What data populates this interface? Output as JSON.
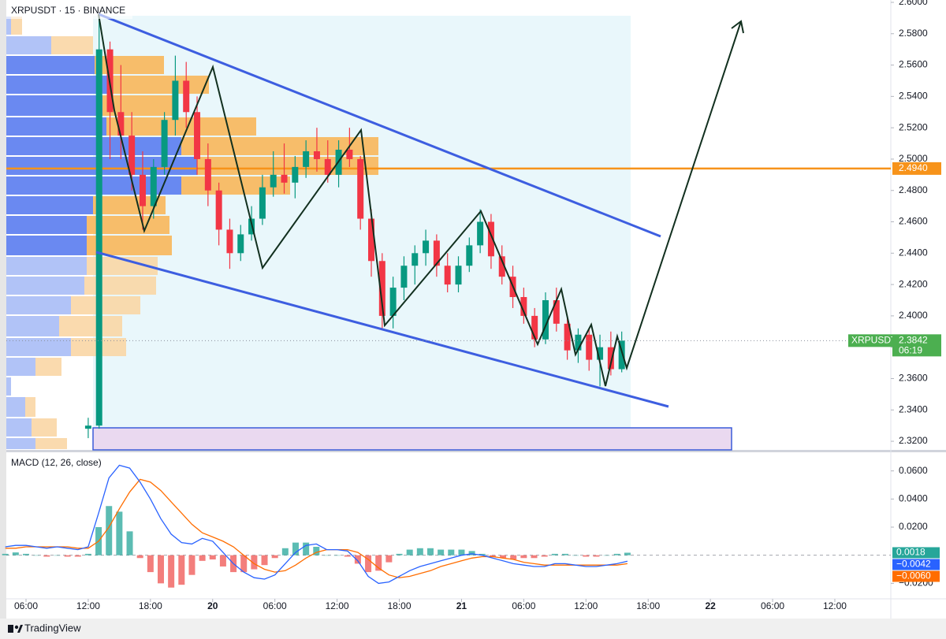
{
  "chart_data": [
    {
      "type": "candlestick",
      "title": "XRPUSDT · 15 · BINANCE",
      "x": [
        12,
        13.05,
        14.1,
        15.15,
        16.2,
        17.25,
        18.3,
        19.35,
        20.4,
        21.45,
        22.5,
        23.55,
        24.6,
        25.65,
        26.7,
        27.75,
        28.8,
        29.85,
        30.9,
        31.95,
        33,
        34.05,
        35.1,
        36.15,
        37.2,
        38.25,
        39.3,
        40.35,
        41.4,
        42.45,
        43.5,
        44.55,
        45.6,
        46.65,
        47.7,
        48.75,
        49.8,
        50.85,
        51.9,
        52.95,
        54,
        55.05,
        56.1,
        57.15,
        58.2,
        59.25,
        60.3,
        61.35,
        62.4,
        63.45
      ],
      "open": [
        2.328,
        2.33,
        2.57,
        2.53,
        2.515,
        2.49,
        2.47,
        2.495,
        2.525,
        2.55,
        2.53,
        2.5,
        2.48,
        2.455,
        2.44,
        2.452,
        2.462,
        2.482,
        2.49,
        2.485,
        2.495,
        2.505,
        2.5,
        2.49,
        2.506,
        2.5,
        2.462,
        2.435,
        2.4,
        2.418,
        2.432,
        2.44,
        2.448,
        2.432,
        2.42,
        2.432,
        2.445,
        2.46,
        2.438,
        2.425,
        2.412,
        2.4,
        2.385,
        2.41,
        2.395,
        2.378,
        2.388,
        2.372,
        2.38,
        2.366
      ],
      "high": [
        2.335,
        2.592,
        2.575,
        2.56,
        2.53,
        2.505,
        2.5,
        2.53,
        2.566,
        2.562,
        2.54,
        2.51,
        2.485,
        2.462,
        2.458,
        2.47,
        2.49,
        2.505,
        2.51,
        2.502,
        2.512,
        2.52,
        2.512,
        2.512,
        2.52,
        2.502,
        2.468,
        2.44,
        2.425,
        2.438,
        2.445,
        2.455,
        2.452,
        2.44,
        2.438,
        2.45,
        2.468,
        2.465,
        2.445,
        2.432,
        2.418,
        2.405,
        2.415,
        2.418,
        2.4,
        2.392,
        2.392,
        2.388,
        2.39,
        2.39
      ],
      "low": [
        2.322,
        2.328,
        2.5,
        2.5,
        2.48,
        2.455,
        2.462,
        2.49,
        2.515,
        2.52,
        2.49,
        2.47,
        2.445,
        2.43,
        2.435,
        2.448,
        2.458,
        2.476,
        2.478,
        2.475,
        2.488,
        2.492,
        2.485,
        2.482,
        2.495,
        2.455,
        2.425,
        2.392,
        2.392,
        2.41,
        2.42,
        2.432,
        2.425,
        2.415,
        2.415,
        2.428,
        2.44,
        2.43,
        2.42,
        2.405,
        2.395,
        2.38,
        2.382,
        2.39,
        2.372,
        2.37,
        2.365,
        2.355,
        2.362,
        2.364
      ],
      "close": [
        2.33,
        2.57,
        2.53,
        2.515,
        2.49,
        2.47,
        2.495,
        2.525,
        2.55,
        2.53,
        2.5,
        2.48,
        2.455,
        2.44,
        2.452,
        2.462,
        2.482,
        2.49,
        2.485,
        2.495,
        2.505,
        2.5,
        2.49,
        2.506,
        2.5,
        2.462,
        2.435,
        2.4,
        2.418,
        2.432,
        2.44,
        2.448,
        2.432,
        2.42,
        2.432,
        2.445,
        2.46,
        2.438,
        2.425,
        2.412,
        2.4,
        2.385,
        2.41,
        2.395,
        2.378,
        2.388,
        2.372,
        2.38,
        2.366,
        2.3842
      ],
      "up_color": "#089981",
      "down_color": "#f23645",
      "symbol_label": "XRPUSDT",
      "last_price_label": "2.3842",
      "countdown": "06:19",
      "last_color": "#4caf50",
      "hline": {
        "value": 2.494,
        "label": "2.4940",
        "color": "#f7931a"
      },
      "xlim": [
        4.1,
        89.4
      ],
      "ylim": [
        2.3145,
        2.6015
      ],
      "yticks": [
        {
          "value": 2.6,
          "label": "2.6000"
        },
        {
          "value": 2.58,
          "label": "2.5800"
        },
        {
          "value": 2.56,
          "label": "2.5600"
        },
        {
          "value": 2.54,
          "label": "2.5400"
        },
        {
          "value": 2.52,
          "label": "2.5200"
        },
        {
          "value": 2.5,
          "label": "2.5000"
        },
        {
          "value": 2.48,
          "label": "2.4800"
        },
        {
          "value": 2.46,
          "label": "2.4600"
        },
        {
          "value": 2.44,
          "label": "2.4400"
        },
        {
          "value": 2.42,
          "label": "2.4200"
        },
        {
          "value": 2.4,
          "label": "2.4000"
        },
        {
          "value": 2.38,
          "label": "2.3800"
        },
        {
          "value": 2.36,
          "label": "2.3600"
        },
        {
          "value": 2.34,
          "label": "2.3400"
        },
        {
          "value": 2.32,
          "label": "2.3200"
        }
      ]
    },
    {
      "type": "macd",
      "title": "MACD (12, 26, close)",
      "x": [
        4,
        5,
        6,
        7,
        8,
        9,
        10,
        11,
        12,
        13,
        14,
        15,
        16,
        17,
        18,
        19,
        20,
        21,
        22,
        23,
        24,
        25,
        26,
        27,
        28,
        29,
        30,
        31,
        32,
        33,
        34,
        35,
        36,
        37,
        38,
        39,
        40,
        41,
        42,
        43,
        44,
        45,
        46,
        47,
        48,
        49,
        50,
        51,
        52,
        53,
        54,
        55,
        56,
        57,
        58,
        59,
        60,
        61,
        62,
        63,
        64
      ],
      "histogram": {
        "up_color": "#26a69a",
        "down_color": "#ef5350",
        "last_label": "0.0018",
        "values": [
          0.001,
          0.002,
          0.001,
          0,
          -0.001,
          0,
          -0.001,
          -0.001,
          0.001,
          0.02,
          0.035,
          0.031,
          0.017,
          -0.002,
          -0.012,
          -0.02,
          -0.023,
          -0.021,
          -0.014,
          -0.004,
          -0.003,
          -0.008,
          -0.012,
          -0.012,
          -0.01,
          -0.007,
          -0.002,
          0.005,
          0.009,
          0.009,
          0.006,
          0,
          0,
          -0.001,
          -0.006,
          -0.012,
          -0.011,
          -0.005,
          0.001,
          0.004,
          0.005,
          0.005,
          0.004,
          0.004,
          0.004,
          0.003,
          0.001,
          -0.001,
          -0.002,
          -0.003,
          -0.002,
          -0.002,
          -0.001,
          0.001,
          0.001,
          0,
          -0.001,
          -0.001,
          0,
          0.001,
          0.0018
        ]
      },
      "macd": {
        "color": "#2962ff",
        "last_label": "−0.0042",
        "values": [
          0.006,
          0.007,
          0.007,
          0.006,
          0.005,
          0.006,
          0.005,
          0.004,
          0.006,
          0.03,
          0.055,
          0.064,
          0.062,
          0.052,
          0.04,
          0.026,
          0.015,
          0.009,
          0.008,
          0.012,
          0.01,
          0.002,
          -0.006,
          -0.012,
          -0.016,
          -0.017,
          -0.014,
          -0.006,
          0.002,
          0.007,
          0.008,
          0.004,
          0.004,
          0.003,
          -0.004,
          -0.015,
          -0.02,
          -0.019,
          -0.015,
          -0.011,
          -0.008,
          -0.006,
          -0.004,
          -0.002,
          0.0,
          0.001,
          0.0,
          -0.002,
          -0.004,
          -0.006,
          -0.007,
          -0.008,
          -0.008,
          -0.006,
          -0.006,
          -0.007,
          -0.008,
          -0.008,
          -0.007,
          -0.006,
          -0.0042
        ]
      },
      "signal": {
        "color": "#ff6d00",
        "last_label": "−0.0060",
        "values": [
          0.005,
          0.005,
          0.006,
          0.006,
          0.006,
          0.006,
          0.006,
          0.005,
          0.005,
          0.01,
          0.02,
          0.033,
          0.045,
          0.054,
          0.052,
          0.046,
          0.038,
          0.03,
          0.022,
          0.016,
          0.013,
          0.01,
          0.006,
          0.0,
          -0.006,
          -0.01,
          -0.012,
          -0.011,
          -0.007,
          -0.002,
          0.002,
          0.004,
          0.004,
          0.004,
          0.002,
          -0.003,
          -0.009,
          -0.014,
          -0.016,
          -0.015,
          -0.013,
          -0.011,
          -0.008,
          -0.006,
          -0.004,
          -0.002,
          -0.001,
          -0.001,
          -0.002,
          -0.003,
          -0.005,
          -0.006,
          -0.007,
          -0.007,
          -0.007,
          -0.007,
          -0.007,
          -0.007,
          -0.007,
          -0.007,
          -0.006
        ]
      },
      "xlim": [
        4.1,
        89.4
      ],
      "ylim": [
        -0.031,
        0.0727
      ],
      "yticks": [
        {
          "value": 0.06,
          "label": "0.0600"
        },
        {
          "value": 0.04,
          "label": "0.0400"
        },
        {
          "value": 0.02,
          "label": "0.0200"
        },
        {
          "value": -0.02,
          "label": "−0.0200"
        }
      ],
      "xticks": [
        {
          "value": 6,
          "label": "06:00"
        },
        {
          "value": 12,
          "label": "12:00"
        },
        {
          "value": 18,
          "label": "18:00"
        },
        {
          "value": 24,
          "label": "20"
        },
        {
          "value": 30,
          "label": "06:00"
        },
        {
          "value": 36,
          "label": "12:00"
        },
        {
          "value": 42,
          "label": "18:00"
        },
        {
          "value": 48,
          "label": "21"
        },
        {
          "value": 54,
          "label": "06:00"
        },
        {
          "value": 60,
          "label": "12:00"
        },
        {
          "value": 66,
          "label": "18:00"
        },
        {
          "value": 72,
          "label": "22"
        },
        {
          "value": 78,
          "label": "06:00"
        },
        {
          "value": 84,
          "label": "12:00"
        }
      ]
    }
  ],
  "footer": "TradingView"
}
